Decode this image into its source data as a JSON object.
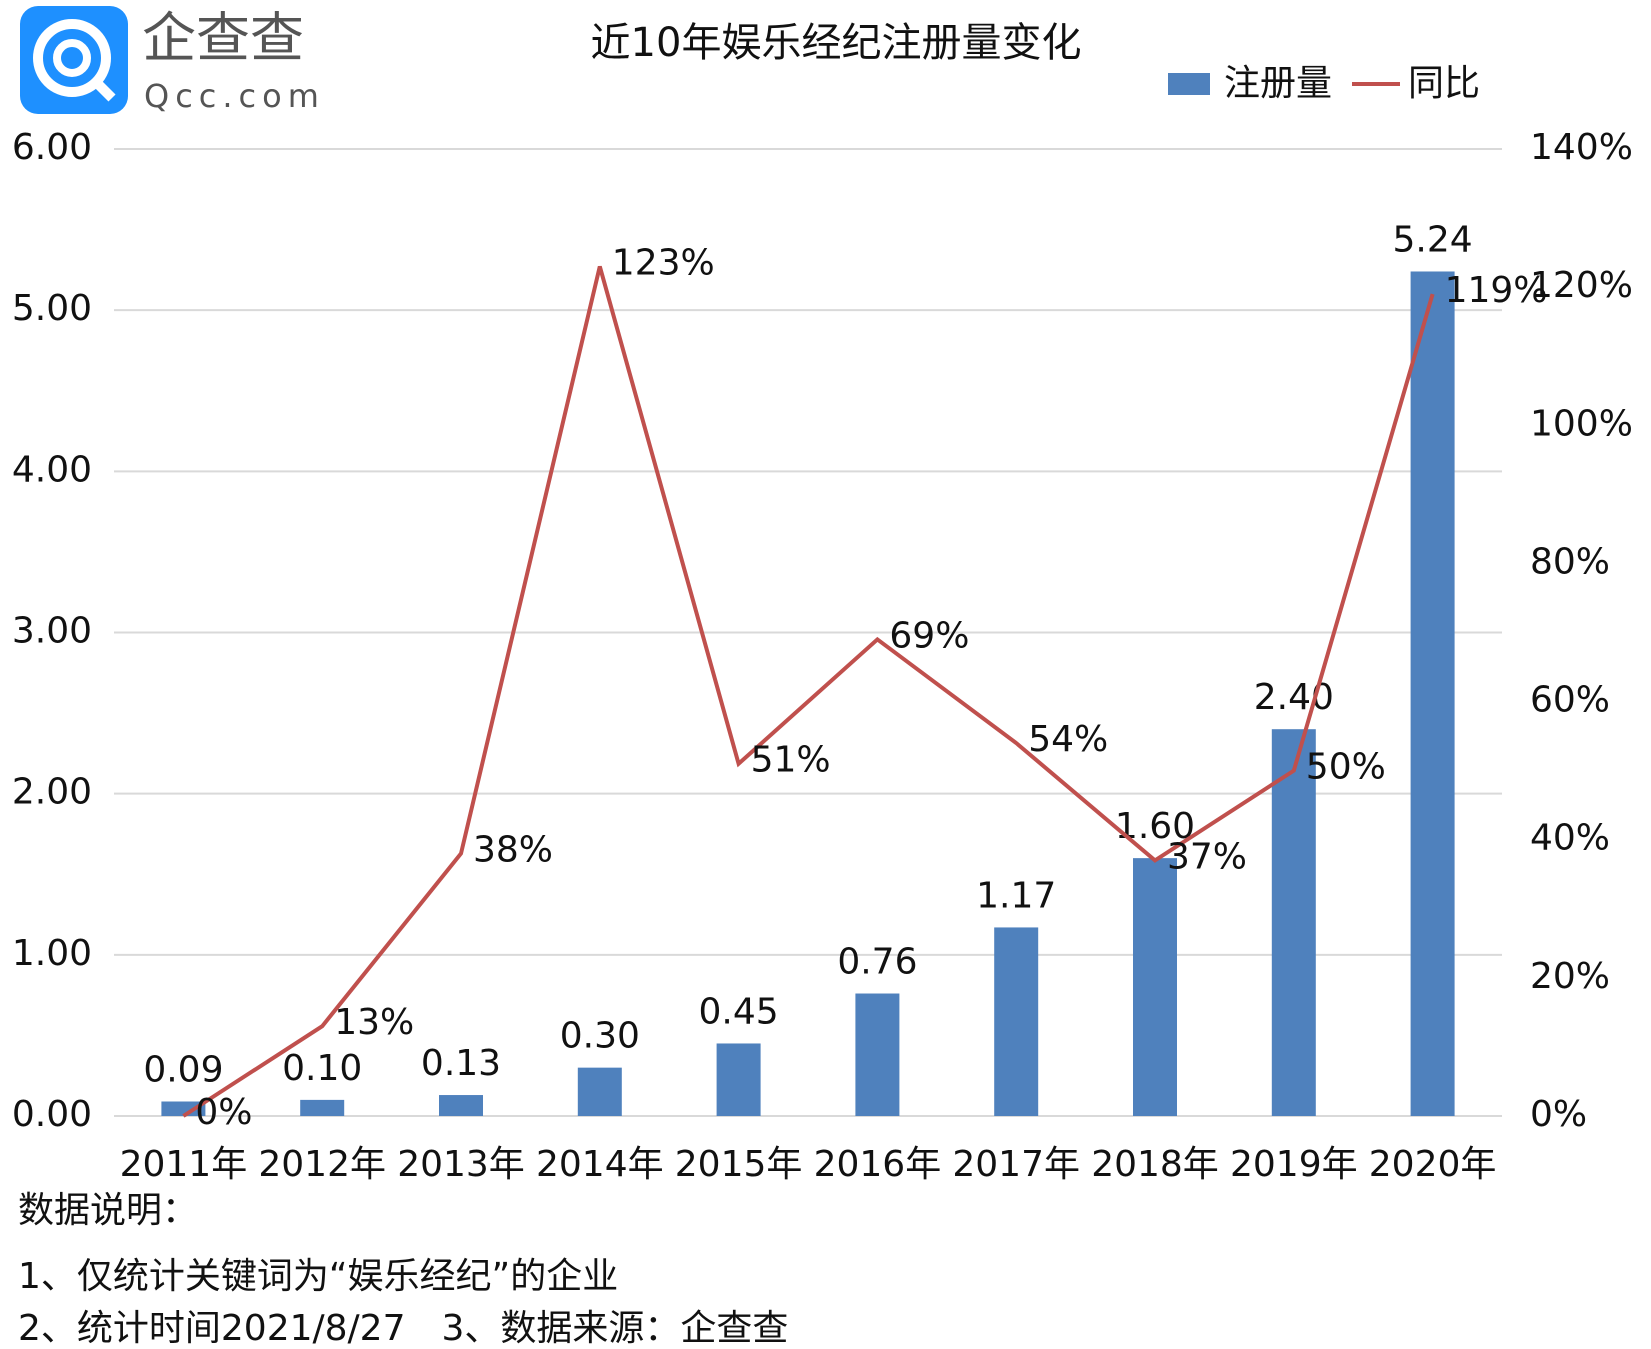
{
  "logo": {
    "name": "企查查",
    "domain": "Qcc.com"
  },
  "chart_data": {
    "type": "combo",
    "title": "近10年娱乐经纪注册量变化",
    "categories": [
      "2011年",
      "2012年",
      "2013年",
      "2014年",
      "2015年",
      "2016年",
      "2017年",
      "2018年",
      "2019年",
      "2020年"
    ],
    "series": [
      {
        "name": "注册量",
        "type": "bar",
        "color": "#4f81bd",
        "values": [
          0.09,
          0.1,
          0.13,
          0.3,
          0.45,
          0.76,
          1.17,
          1.6,
          2.4,
          5.24
        ],
        "value_labels": [
          "0.09",
          "0.10",
          "0.13",
          "0.30",
          "0.45",
          "0.76",
          "1.17",
          "1.60",
          "2.40",
          "5.24"
        ]
      },
      {
        "name": "同比",
        "type": "line",
        "axis": "y2",
        "color": "#c0504d",
        "values": [
          0,
          13,
          38,
          123,
          51,
          69,
          54,
          37,
          50,
          119
        ],
        "value_labels": [
          "0%",
          "13%",
          "38%",
          "123%",
          "51%",
          "69%",
          "54%",
          "37%",
          "50%",
          "119%"
        ]
      }
    ],
    "ylim": [
      0,
      6
    ],
    "yticks": [
      {
        "value": 0,
        "label": "0.00"
      },
      {
        "value": 1,
        "label": "1.00"
      },
      {
        "value": 2,
        "label": "2.00"
      },
      {
        "value": 3,
        "label": "3.00"
      },
      {
        "value": 4,
        "label": "4.00"
      },
      {
        "value": 5,
        "label": "5.00"
      },
      {
        "value": 6,
        "label": "6.00"
      }
    ],
    "y2lim": [
      0,
      140
    ],
    "y2ticks": [
      {
        "value": 0,
        "label": "0%"
      },
      {
        "value": 20,
        "label": "20%"
      },
      {
        "value": 40,
        "label": "40%"
      },
      {
        "value": 60,
        "label": "60%"
      },
      {
        "value": 80,
        "label": "80%"
      },
      {
        "value": 100,
        "label": "100%"
      },
      {
        "value": 120,
        "label": "120%"
      },
      {
        "value": 140,
        "label": "140%"
      }
    ],
    "grid": true,
    "legend": "top-right"
  },
  "notes": [
    "数据说明：",
    "1、仅统计关键词为“娱乐经纪”的企业",
    "2、统计时间2021/8/27　3、数据来源：企查查"
  ]
}
